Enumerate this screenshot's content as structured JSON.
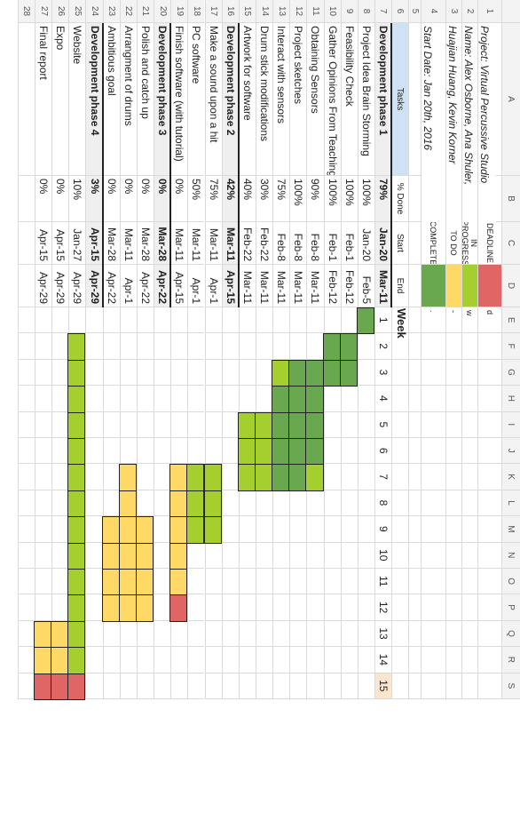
{
  "column_letters": [
    "A",
    "B",
    "C",
    "D",
    "E",
    "F",
    "G",
    "H",
    "I",
    "J",
    "K",
    "L",
    "M",
    "N",
    "O",
    "P",
    "Q",
    "R",
    "S"
  ],
  "row_numbers": [
    "1",
    "2",
    "3",
    "4",
    "5",
    "6",
    "7",
    "8",
    "9",
    "10",
    "11",
    "12",
    "13",
    "14",
    "15",
    "16",
    "17",
    "18",
    "19",
    "20",
    "21",
    "22",
    "23",
    "24",
    "25",
    "26",
    "27",
    "28"
  ],
  "project": {
    "line1": "Project: Virtual Percussive Studio",
    "line2": "Name: Alex Osborne, Ana Shuler,",
    "line3": "Huajian Huang, Kevin Korner",
    "line4": "Start Date: Jan 20th, 2016"
  },
  "legend": {
    "items": [
      {
        "label": "DEADLINE",
        "color": "#e06666",
        "note": "d"
      },
      {
        "label": "IN PROGRESS",
        "color": "#a4cf2f",
        "note": "w"
      },
      {
        "label": "TO DO",
        "color": "#ffd966",
        "note": "-"
      },
      {
        "label": "COMPLETE",
        "color": "#6aa84f",
        "note": "."
      }
    ]
  },
  "headers": {
    "tasks": "Tasks",
    "done": "% Done",
    "start": "Start",
    "end": "End",
    "week": "Week"
  },
  "weeks": [
    "1",
    "2",
    "3",
    "4",
    "5",
    "6",
    "7",
    "8",
    "9",
    "10",
    "11",
    "12",
    "13",
    "14",
    "15"
  ],
  "tasks": [
    {
      "name": "Development phase 1",
      "done": "79%",
      "start": "Jan-20",
      "end": "Mar-11",
      "phase": true
    },
    {
      "name": "Project Idea Brain Storming",
      "done": "100%",
      "start": "Jan-20",
      "end": "Feb-5"
    },
    {
      "name": "Feasibility Check",
      "done": "100%",
      "start": "Feb-1",
      "end": "Feb-12"
    },
    {
      "name": "Gather Opinions From Teaching Staffs",
      "done": "100%",
      "start": "Feb-1",
      "end": "Feb-12"
    },
    {
      "name": "Obtaining Sensors",
      "done": "90%",
      "start": "Feb-8",
      "end": "Mar-11"
    },
    {
      "name": "Project sketches",
      "done": "100%",
      "start": "Feb-8",
      "end": "Mar-11"
    },
    {
      "name": "Interact with sensors",
      "done": "75%",
      "start": "Feb-8",
      "end": "Mar-11"
    },
    {
      "name": "Drum stick modifications",
      "done": "30%",
      "start": "Feb-22",
      "end": "Mar-11"
    },
    {
      "name": "Artwork for software",
      "done": "40%",
      "start": "Feb-22",
      "end": "Mar-11"
    },
    {
      "name": "Development phase 2",
      "done": "42%",
      "start": "Mar-11",
      "end": "Apr-15",
      "phase": true
    },
    {
      "name": "Make a sound upon a hit",
      "done": "75%",
      "start": "Mar-11",
      "end": "Apr-1"
    },
    {
      "name": "PC software",
      "done": "50%",
      "start": "Mar-11",
      "end": "Apr-1"
    },
    {
      "name": "Finish software (with tutorial)",
      "done": "0%",
      "start": "Mar-11",
      "end": "Apr-15"
    },
    {
      "name": "Development phase 3",
      "done": "0%",
      "start": "Mar-28",
      "end": "Apr-22",
      "phase": true
    },
    {
      "name": "Polish and catch up",
      "done": "0%",
      "start": "Mar-28",
      "end": "Apr-22"
    },
    {
      "name": "Arrangment of drums",
      "done": "0%",
      "start": "Mar-11",
      "end": "Apr-1"
    },
    {
      "name": "Ambitious goal",
      "done": "0%",
      "start": "Mar-28",
      "end": "Apr-22"
    },
    {
      "name": "Development phase 4",
      "done": "3%",
      "start": "Apr-15",
      "end": "Apr-29",
      "phase": true
    },
    {
      "name": "Website",
      "done": "10%",
      "start": "Jan-27",
      "end": "Apr-29"
    },
    {
      "name": "Expo",
      "done": "0%",
      "start": "Apr-15",
      "end": "Apr-29"
    },
    {
      "name": "Final report",
      "done": "0%",
      "start": "Apr-15",
      "end": "Apr-29"
    }
  ],
  "colors": {
    "deadline": "#e06666",
    "in_progress": "#a4cf2f",
    "todo": "#ffd966",
    "complete": "#6aa84f",
    "tasks_header": "#cfe2f3",
    "week15_header": "#fce5cd",
    "phase_row": "#efefef"
  },
  "gantt": [
    {
      "row": 1,
      "segments": [
        {
          "week": 1,
          "status": "complete"
        }
      ]
    },
    {
      "row": 2,
      "segments": [
        {
          "week": 2,
          "status": "complete"
        },
        {
          "week": 3,
          "status": "complete"
        }
      ]
    },
    {
      "row": 3,
      "segments": [
        {
          "week": 2,
          "status": "complete"
        },
        {
          "week": 3,
          "status": "complete"
        }
      ]
    },
    {
      "row": 4,
      "segments": [
        {
          "week": 3,
          "status": "complete"
        },
        {
          "week": 4,
          "status": "complete"
        },
        {
          "week": 5,
          "status": "complete"
        },
        {
          "week": 6,
          "status": "complete"
        },
        {
          "week": 7,
          "status": "in_progress"
        }
      ]
    },
    {
      "row": 5,
      "segments": [
        {
          "week": 3,
          "status": "complete"
        },
        {
          "week": 4,
          "status": "complete"
        },
        {
          "week": 5,
          "status": "complete"
        },
        {
          "week": 6,
          "status": "complete"
        },
        {
          "week": 7,
          "status": "complete"
        }
      ]
    },
    {
      "row": 6,
      "segments": [
        {
          "week": 3,
          "status": "in_progress"
        },
        {
          "week": 4,
          "status": "complete"
        },
        {
          "week": 5,
          "status": "complete"
        },
        {
          "week": 6,
          "status": "complete"
        },
        {
          "week": 7,
          "status": "complete"
        }
      ]
    },
    {
      "row": 7,
      "segments": [
        {
          "week": 5,
          "status": "in_progress"
        },
        {
          "week": 6,
          "status": "in_progress"
        },
        {
          "week": 7,
          "status": "in_progress"
        }
      ]
    },
    {
      "row": 8,
      "segments": [
        {
          "week": 5,
          "status": "in_progress"
        },
        {
          "week": 6,
          "status": "in_progress"
        },
        {
          "week": 7,
          "status": "in_progress"
        }
      ]
    },
    {
      "row": 10,
      "segments": [
        {
          "week": 7,
          "status": "in_progress"
        },
        {
          "week": 8,
          "status": "in_progress"
        },
        {
          "week": 9,
          "status": "in_progress"
        }
      ]
    },
    {
      "row": 11,
      "segments": [
        {
          "week": 7,
          "status": "in_progress"
        },
        {
          "week": 8,
          "status": "in_progress"
        },
        {
          "week": 9,
          "status": "in_progress"
        }
      ]
    },
    {
      "row": 12,
      "segments": [
        {
          "week": 7,
          "status": "todo"
        },
        {
          "week": 8,
          "status": "todo"
        },
        {
          "week": 9,
          "status": "todo"
        },
        {
          "week": 10,
          "status": "todo"
        },
        {
          "week": 11,
          "status": "todo"
        },
        {
          "week": 12,
          "status": "deadline"
        }
      ]
    },
    {
      "row": 14,
      "segments": [
        {
          "week": 9,
          "status": "todo"
        },
        {
          "week": 10,
          "status": "todo"
        },
        {
          "week": 11,
          "status": "todo"
        },
        {
          "week": 12,
          "status": "todo"
        }
      ]
    },
    {
      "row": 15,
      "segments": [
        {
          "week": 7,
          "status": "todo"
        },
        {
          "week": 8,
          "status": "todo"
        },
        {
          "week": 9,
          "status": "todo"
        },
        {
          "week": 10,
          "status": "todo"
        },
        {
          "week": 11,
          "status": "todo"
        },
        {
          "week": 12,
          "status": "todo"
        }
      ]
    },
    {
      "row": 16,
      "segments": [
        {
          "week": 9,
          "status": "todo"
        },
        {
          "week": 10,
          "status": "todo"
        },
        {
          "week": 11,
          "status": "todo"
        },
        {
          "week": 12,
          "status": "todo"
        }
      ]
    },
    {
      "row": 18,
      "segments": [
        {
          "week": 2,
          "status": "in_progress"
        },
        {
          "week": 3,
          "status": "in_progress"
        },
        {
          "week": 4,
          "status": "in_progress"
        },
        {
          "week": 5,
          "status": "in_progress"
        },
        {
          "week": 6,
          "status": "in_progress"
        },
        {
          "week": 7,
          "status": "in_progress"
        },
        {
          "week": 8,
          "status": "in_progress"
        },
        {
          "week": 9,
          "status": "in_progress"
        },
        {
          "week": 10,
          "status": "in_progress"
        },
        {
          "week": 11,
          "status": "in_progress"
        },
        {
          "week": 12,
          "status": "in_progress"
        },
        {
          "week": 13,
          "status": "in_progress"
        },
        {
          "week": 14,
          "status": "in_progress"
        },
        {
          "week": 15,
          "status": "deadline"
        }
      ]
    },
    {
      "row": 19,
      "segments": [
        {
          "week": 13,
          "status": "todo"
        },
        {
          "week": 14,
          "status": "todo"
        },
        {
          "week": 15,
          "status": "deadline"
        }
      ]
    },
    {
      "row": 20,
      "segments": [
        {
          "week": 13,
          "status": "todo"
        },
        {
          "week": 14,
          "status": "todo"
        },
        {
          "week": 15,
          "status": "deadline"
        }
      ]
    }
  ]
}
